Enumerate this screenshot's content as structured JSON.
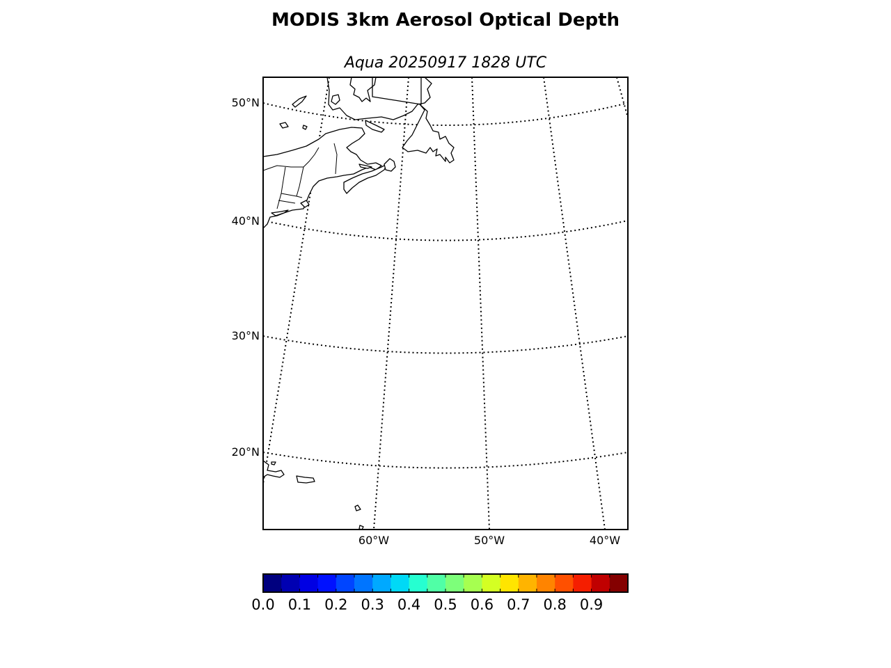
{
  "title": "MODIS 3km Aerosol Optical Depth",
  "subtitle": "Aqua 20250917 1828 UTC",
  "map": {
    "projection": "conic",
    "lat_labels": [
      "50°N",
      "40°N",
      "30°N",
      "20°N"
    ],
    "lon_labels": [
      "60°W",
      "50°W",
      "40°W"
    ],
    "graticule_style": "dotted",
    "coastline_color": "#000000",
    "data_field": "aerosol optical depth (no pixels shown)"
  },
  "colorbar": {
    "cmap": "jet",
    "min": 0.0,
    "max": 1.0,
    "segments": 20,
    "tick_labels": [
      "0.0",
      "0.1",
      "0.2",
      "0.3",
      "0.4",
      "0.5",
      "0.6",
      "0.7",
      "0.8",
      "0.9"
    ],
    "colors": [
      "#00007f",
      "#0000b2",
      "#0000e3",
      "#0011ff",
      "#0045ff",
      "#0075ff",
      "#00a9ff",
      "#00d9f6",
      "#26ffd1",
      "#50ffa6",
      "#7dff7a",
      "#a6ff50",
      "#d4ff23",
      "#ffe500",
      "#ffb400",
      "#ff8400",
      "#ff5000",
      "#f51e00",
      "#c00000",
      "#840000"
    ]
  }
}
